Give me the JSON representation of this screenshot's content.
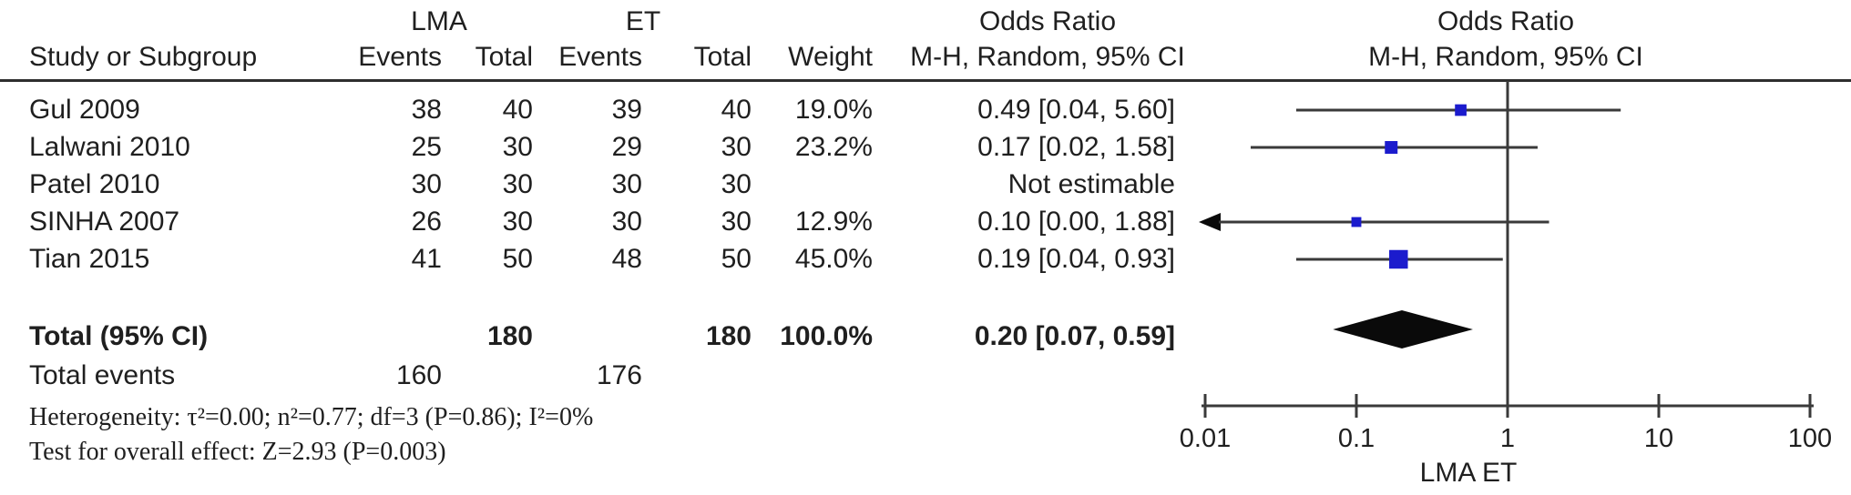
{
  "header": {
    "group_lma": "LMA",
    "group_et": "ET",
    "or_col_title": "Odds Ratio",
    "or_col_subtitle": "M-H, Random, 95% CI",
    "plot_title": "Odds Ratio",
    "plot_subtitle": "M-H, Random, 95% CI",
    "study": "Study or Subgroup",
    "events": "Events",
    "total": "Total",
    "weight": "Weight"
  },
  "rows": [
    {
      "study": "Gul 2009",
      "e1": "38",
      "t1": "40",
      "e2": "39",
      "t2": "40",
      "weight": "19.0%",
      "or": "0.49 [0.04, 5.60]"
    },
    {
      "study": "Lalwani 2010",
      "e1": "25",
      "t1": "30",
      "e2": "29",
      "t2": "30",
      "weight": "23.2%",
      "or": "0.17 [0.02, 1.58]"
    },
    {
      "study": "Patel 2010",
      "e1": "30",
      "t1": "30",
      "e2": "30",
      "t2": "30",
      "weight": "",
      "or": "Not estimable"
    },
    {
      "study": "SINHA 2007",
      "e1": "26",
      "t1": "30",
      "e2": "30",
      "t2": "30",
      "weight": "12.9%",
      "or": "0.10 [0.00, 1.88]"
    },
    {
      "study": "Tian 2015",
      "e1": "41",
      "t1": "50",
      "e2": "48",
      "t2": "50",
      "weight": "45.0%",
      "or": "0.19 [0.04, 0.93]"
    }
  ],
  "totals": {
    "label": "Total (95% CI)",
    "t1": "180",
    "t2": "180",
    "weight": "100.0%",
    "or": "0.20 [0.07, 0.59]",
    "events_label": "Total events",
    "e1": "160",
    "e2": "176"
  },
  "footnotes": {
    "heterogeneity": "Heterogeneity: τ²=0.00; n²=0.77; df=3 (P=0.86); I²=0%",
    "overall_effect": "Test for overall effect: Z=2.93 (P=0.003)"
  },
  "chart_data": {
    "type": "scatter",
    "variant": "forest-plot",
    "title": "Odds Ratio",
    "method": "M-H, Random, 95% CI",
    "x_scale": "log10",
    "xlim": [
      0.01,
      100
    ],
    "x_ticks": [
      "0.01",
      "0.1",
      "1",
      "10",
      "100"
    ],
    "x_tick_values": [
      0.01,
      0.1,
      1,
      10,
      100
    ],
    "null_line": 1,
    "favours_left": "LMA",
    "favours_right": "ET",
    "studies": [
      {
        "name": "Gul 2009",
        "or": 0.49,
        "ci_low": 0.04,
        "ci_high": 5.6,
        "weight_pct": 19.0,
        "low_arrow": false
      },
      {
        "name": "Lalwani 2010",
        "or": 0.17,
        "ci_low": 0.02,
        "ci_high": 1.58,
        "weight_pct": 23.2,
        "low_arrow": false
      },
      {
        "name": "Patel 2010",
        "or": null,
        "ci_low": null,
        "ci_high": null,
        "weight_pct": null,
        "note": "Not estimable"
      },
      {
        "name": "SINHA 2007",
        "or": 0.1,
        "ci_low": 0.0,
        "ci_high": 1.88,
        "weight_pct": 12.9,
        "low_arrow": true
      },
      {
        "name": "Tian 2015",
        "or": 0.19,
        "ci_low": 0.04,
        "ci_high": 0.93,
        "weight_pct": 45.0,
        "low_arrow": false
      }
    ],
    "total": {
      "name": "Total (95% CI)",
      "or": 0.2,
      "ci_low": 0.07,
      "ci_high": 0.59,
      "weight_pct": 100.0
    }
  },
  "colors": {
    "square": "#1b1bcd",
    "line": "#3a3a3a",
    "text": "#1f1f1f",
    "diamond": "#0a0a0a"
  }
}
